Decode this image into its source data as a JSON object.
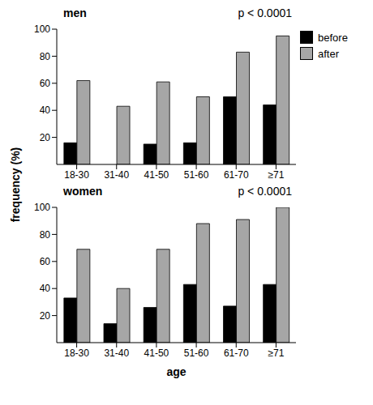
{
  "chart_data": [
    {
      "type": "bar",
      "title": "men",
      "annotation": "p < 0.0001",
      "ylabel": "frequency (%)",
      "categories": [
        "18-30",
        "31-40",
        "41-50",
        "51-60",
        "61-70",
        "≥71"
      ],
      "series": [
        {
          "name": "before",
          "color": "#000000",
          "values": [
            16,
            0,
            15,
            16,
            50,
            44
          ]
        },
        {
          "name": "after",
          "color": "#a6a6a6",
          "values": [
            62,
            43,
            61,
            50,
            83,
            95
          ]
        }
      ],
      "ylim": [
        0,
        100
      ],
      "yticks": [
        20,
        40,
        60,
        80,
        100
      ],
      "legend": "upper right"
    },
    {
      "type": "bar",
      "title": "women",
      "annotation": "p < 0.0001",
      "xlabel": "age",
      "categories": [
        "18-30",
        "31-40",
        "41-50",
        "51-60",
        "61-70",
        "≥71"
      ],
      "series": [
        {
          "name": "before",
          "color": "#000000",
          "values": [
            33,
            14,
            26,
            43,
            27,
            43
          ]
        },
        {
          "name": "after",
          "color": "#a6a6a6",
          "values": [
            69,
            40,
            69,
            88,
            91,
            100
          ]
        }
      ],
      "ylim": [
        0,
        100
      ],
      "yticks": [
        20,
        40,
        60,
        80,
        100
      ]
    }
  ]
}
